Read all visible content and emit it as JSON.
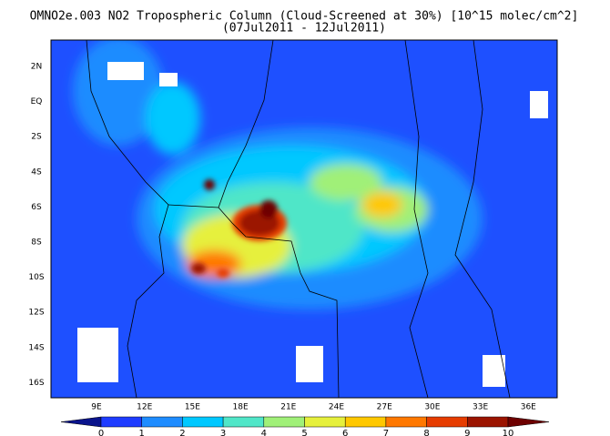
{
  "title": "OMNO2e.003 NO2 Tropospheric Column (Cloud-Screened at 30%) [10^15 molec/cm^2]",
  "subtitle": "(07Jul2011 - 12Jul2011)",
  "lat_labels": [
    "2N",
    "EQ",
    "2S",
    "4S",
    "6S",
    "8S",
    "10S",
    "12S",
    "14S",
    "16S"
  ],
  "lon_labels": [
    "9E",
    "12E",
    "15E",
    "18E",
    "21E",
    "24E",
    "27E",
    "30E",
    "33E",
    "36E"
  ],
  "colorbar": {
    "labels": [
      0,
      1,
      2,
      3,
      4,
      5,
      6,
      7,
      8,
      9,
      10
    ],
    "colors": [
      "#0a148c",
      "#1e3cff",
      "#1e8cff",
      "#00c8ff",
      "#50e6c8",
      "#a0f078",
      "#e6f03c",
      "#ffc800",
      "#ff7800",
      "#e63c00",
      "#9b1400",
      "#6e0000"
    ]
  }
}
